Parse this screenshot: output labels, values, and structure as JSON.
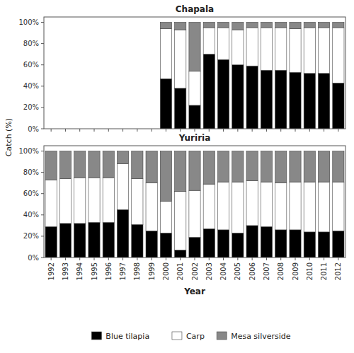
{
  "chart_data": [
    {
      "type": "bar",
      "stacked": true,
      "title": "Chapala",
      "y_label": "Catch (%)",
      "categories": [
        null,
        null,
        null,
        null,
        null,
        null,
        null,
        null,
        null,
        null,
        null,
        null,
        null,
        null,
        null,
        null,
        null,
        null,
        null,
        null,
        null
      ],
      "tick_labels": "y",
      "series": [
        {
          "name": "Blue tilapia",
          "color": "#000000",
          "values": [
            0,
            0,
            0,
            0,
            0,
            0,
            0,
            0,
            47,
            38,
            22,
            70,
            65,
            60,
            59,
            55,
            55,
            53,
            52,
            52,
            43
          ]
        },
        {
          "name": "Carp",
          "color": "#ffffff",
          "values": [
            0,
            0,
            0,
            0,
            0,
            0,
            0,
            0,
            47,
            55,
            32,
            25,
            30,
            33,
            36,
            40,
            40,
            41,
            43,
            43,
            52
          ]
        },
        {
          "name": "Mesa silverside",
          "color": "#888888",
          "values": [
            0,
            0,
            0,
            0,
            0,
            0,
            0,
            0,
            6,
            7,
            46,
            5,
            5,
            7,
            5,
            5,
            5,
            6,
            5,
            5,
            5
          ]
        }
      ],
      "ylim": [
        0,
        105
      ],
      "yticks": [
        {
          "value": 0,
          "label": "0%"
        },
        {
          "value": 20,
          "label": "20%"
        },
        {
          "value": 40,
          "label": "40%"
        },
        {
          "value": 60,
          "label": "60%"
        },
        {
          "value": 80,
          "label": "80%"
        },
        {
          "value": 100,
          "label": "100%"
        }
      ],
      "grid": false,
      "legend": "bottom"
    },
    {
      "type": "bar",
      "stacked": true,
      "title": "Yuriria",
      "x_label": "Year",
      "categories": [
        "1992",
        "1993",
        "1994",
        "1995",
        "1996",
        "1997",
        "1998",
        "1999",
        "2000",
        "2001",
        "2002",
        "2003",
        "2004",
        "2005",
        "2006",
        "2007",
        "2008",
        "2009",
        "2010",
        "2011",
        "2012"
      ],
      "series": [
        {
          "name": "Blue tilapia",
          "color": "#000000",
          "values": [
            29,
            32,
            32,
            33,
            33,
            45,
            31,
            25,
            23,
            7,
            19,
            27,
            26,
            23,
            30,
            29,
            26,
            26,
            24,
            24,
            25
          ]
        },
        {
          "name": "Carp",
          "color": "#ffffff",
          "values": [
            44,
            42,
            43,
            42,
            42,
            43,
            43,
            45,
            30,
            55,
            44,
            42,
            45,
            48,
            42,
            42,
            44,
            45,
            47,
            47,
            46
          ]
        },
        {
          "name": "Mesa silverside",
          "color": "#888888",
          "values": [
            27,
            26,
            25,
            25,
            25,
            12,
            26,
            30,
            47,
            38,
            37,
            31,
            29,
            29,
            28,
            29,
            30,
            29,
            29,
            29,
            29
          ]
        }
      ],
      "ylim": [
        0,
        105
      ],
      "yticks": [
        {
          "value": 0,
          "label": "0%"
        },
        {
          "value": 20,
          "label": "20%"
        },
        {
          "value": 40,
          "label": "40%"
        },
        {
          "value": 60,
          "label": "60%"
        },
        {
          "value": 80,
          "label": "80%"
        },
        {
          "value": 100,
          "label": "100%"
        }
      ],
      "grid": false
    }
  ]
}
